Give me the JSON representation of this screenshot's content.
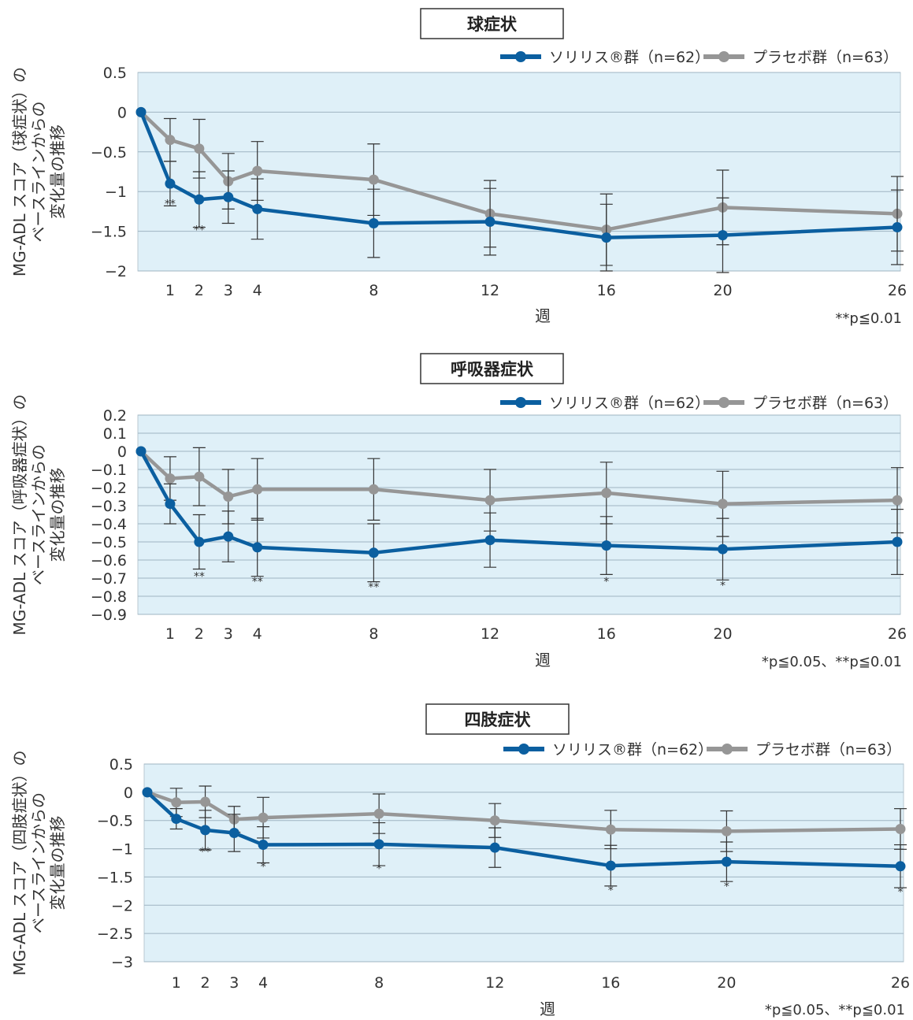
{
  "chart_data": [
    {
      "type": "line",
      "title": "球症状",
      "ylabel_lines": [
        "MG-ADL スコア（球症状）の",
        "ベースラインからの",
        "変化量の推移"
      ],
      "xlabel": "週",
      "x": [
        0,
        1,
        2,
        3,
        4,
        8,
        12,
        16,
        20,
        26
      ],
      "x_tick_labels": [
        "1",
        "2",
        "3",
        "4",
        "8",
        "12",
        "16",
        "20",
        "26"
      ],
      "x_tick_values": [
        1,
        2,
        3,
        4,
        8,
        12,
        16,
        20,
        26
      ],
      "ylim": [
        -2,
        0.5
      ],
      "y_ticks": [
        0.5,
        0,
        -0.5,
        -1,
        -1.5,
        -2
      ],
      "y_tick_labels": [
        "0.5",
        "0",
        "−0.5",
        "−1",
        "−1.5",
        "−2"
      ],
      "grid": true,
      "legend_position": "top-right",
      "note": "**p≦0.01",
      "series": [
        {
          "name": "ソリリス®群（n=62）",
          "color": "#0b5fa0",
          "x": [
            0,
            1,
            2,
            3,
            4,
            8,
            12,
            16,
            20,
            26
          ],
          "values": [
            0,
            -0.9,
            -1.1,
            -1.07,
            -1.22,
            -1.4,
            -1.38,
            -1.58,
            -1.55,
            -1.45
          ],
          "error": [
            null,
            0.28,
            0.35,
            0.33,
            0.38,
            0.43,
            0.42,
            0.42,
            0.47,
            0.47
          ]
        },
        {
          "name": "プラセボ群（n=63）",
          "color": "#969696",
          "x": [
            0,
            1,
            2,
            3,
            4,
            8,
            12,
            16,
            20,
            26
          ],
          "values": [
            0,
            -0.35,
            -0.46,
            -0.87,
            -0.74,
            -0.85,
            -1.28,
            -1.48,
            -1.2,
            -1.28
          ],
          "error": [
            null,
            0.27,
            0.37,
            0.35,
            0.37,
            0.45,
            0.42,
            0.45,
            0.47,
            0.47
          ]
        }
      ],
      "annotations": [
        {
          "x": 1,
          "y": -1.2,
          "text": "**"
        },
        {
          "x": 2,
          "y": -1.53,
          "text": "**"
        }
      ]
    },
    {
      "type": "line",
      "title": "呼吸器症状",
      "ylabel_lines": [
        "MG-ADL スコア（呼吸器症状）の",
        "ベースラインからの",
        "変化量の推移"
      ],
      "xlabel": "週",
      "x": [
        0,
        1,
        2,
        3,
        4,
        8,
        12,
        16,
        20,
        26
      ],
      "x_tick_labels": [
        "1",
        "2",
        "3",
        "4",
        "8",
        "12",
        "16",
        "20",
        "26"
      ],
      "x_tick_values": [
        1,
        2,
        3,
        4,
        8,
        12,
        16,
        20,
        26
      ],
      "ylim": [
        -0.9,
        0.2
      ],
      "y_ticks": [
        0.2,
        0.1,
        0,
        -0.1,
        -0.2,
        -0.3,
        -0.4,
        -0.5,
        -0.6,
        -0.7,
        -0.8,
        -0.9
      ],
      "y_tick_labels": [
        "0.2",
        "0.1",
        "0",
        "−0.1",
        "−0.2",
        "−0.3",
        "−0.4",
        "−0.5",
        "−0.6",
        "−0.7",
        "−0.8",
        "−0.9"
      ],
      "grid": true,
      "legend_position": "top-right",
      "note": "*p≦0.05、**p≦0.01",
      "series": [
        {
          "name": "ソリリス®群（n=62）",
          "color": "#0b5fa0",
          "x": [
            0,
            1,
            2,
            3,
            4,
            8,
            12,
            16,
            20,
            26
          ],
          "values": [
            0,
            -0.29,
            -0.5,
            -0.47,
            -0.53,
            -0.56,
            -0.49,
            -0.52,
            -0.54,
            -0.5
          ],
          "error": [
            null,
            0.11,
            0.15,
            0.14,
            0.16,
            0.16,
            0.15,
            0.16,
            0.17,
            0.18
          ]
        },
        {
          "name": "プラセボ群（n=63）",
          "color": "#969696",
          "x": [
            0,
            1,
            2,
            3,
            4,
            8,
            12,
            16,
            20,
            26
          ],
          "values": [
            0,
            -0.15,
            -0.14,
            -0.25,
            -0.21,
            -0.21,
            -0.27,
            -0.23,
            -0.29,
            -0.27
          ],
          "error": [
            null,
            0.12,
            0.16,
            0.15,
            0.17,
            0.17,
            0.17,
            0.17,
            0.18,
            0.18
          ]
        }
      ],
      "annotations": [
        {
          "x": 2,
          "y": -0.71,
          "text": "**"
        },
        {
          "x": 4,
          "y": -0.74,
          "text": "**"
        },
        {
          "x": 8,
          "y": -0.77,
          "text": "**"
        },
        {
          "x": 16,
          "y": -0.74,
          "text": "*"
        },
        {
          "x": 20,
          "y": -0.76,
          "text": "*"
        }
      ]
    },
    {
      "type": "line",
      "title": "四肢症状",
      "ylabel_lines": [
        "MG-ADL スコア（四肢症状）の",
        "ベースラインからの",
        "変化量の推移"
      ],
      "xlabel": "週",
      "x": [
        0,
        1,
        2,
        3,
        4,
        8,
        12,
        16,
        20,
        26
      ],
      "x_tick_labels": [
        "1",
        "2",
        "3",
        "4",
        "8",
        "12",
        "16",
        "20",
        "26"
      ],
      "x_tick_values": [
        1,
        2,
        3,
        4,
        8,
        12,
        16,
        20,
        26
      ],
      "ylim": [
        -3,
        0.5
      ],
      "y_ticks": [
        0.5,
        0,
        -0.5,
        -1,
        -1.5,
        -2,
        -2.5,
        -3
      ],
      "y_tick_labels": [
        "0.5",
        "0",
        "−0.5",
        "−1",
        "−1.5",
        "−2",
        "−2.5",
        "−3"
      ],
      "grid": true,
      "legend_position": "top-right",
      "note": "*p≦0.05、**p≦0.01",
      "series": [
        {
          "name": "ソリリス®群（n=62）",
          "color": "#0b5fa0",
          "x": [
            0,
            1,
            2,
            3,
            4,
            8,
            12,
            16,
            20,
            26
          ],
          "values": [
            0,
            -0.47,
            -0.67,
            -0.72,
            -0.93,
            -0.92,
            -0.98,
            -1.3,
            -1.23,
            -1.31
          ],
          "error": [
            null,
            0.18,
            0.35,
            0.33,
            0.32,
            0.38,
            0.35,
            0.36,
            0.35,
            0.38
          ]
        },
        {
          "name": "プラセボ群（n=63）",
          "color": "#969696",
          "x": [
            0,
            1,
            2,
            3,
            4,
            8,
            12,
            16,
            20,
            26
          ],
          "values": [
            0,
            -0.18,
            -0.17,
            -0.48,
            -0.45,
            -0.38,
            -0.5,
            -0.66,
            -0.69,
            -0.65
          ],
          "error": [
            null,
            0.25,
            0.28,
            0.23,
            0.36,
            0.35,
            0.3,
            0.34,
            0.36,
            0.36
          ]
        }
      ],
      "annotations": [
        {
          "x": 2,
          "y": -1.12,
          "text": "**"
        },
        {
          "x": 4,
          "y": -1.38,
          "text": "*"
        },
        {
          "x": 8,
          "y": -1.42,
          "text": "*"
        },
        {
          "x": 16,
          "y": -1.8,
          "text": "*"
        },
        {
          "x": 20,
          "y": -1.73,
          "text": "*"
        },
        {
          "x": 26,
          "y": -1.83,
          "text": "*"
        }
      ]
    }
  ]
}
